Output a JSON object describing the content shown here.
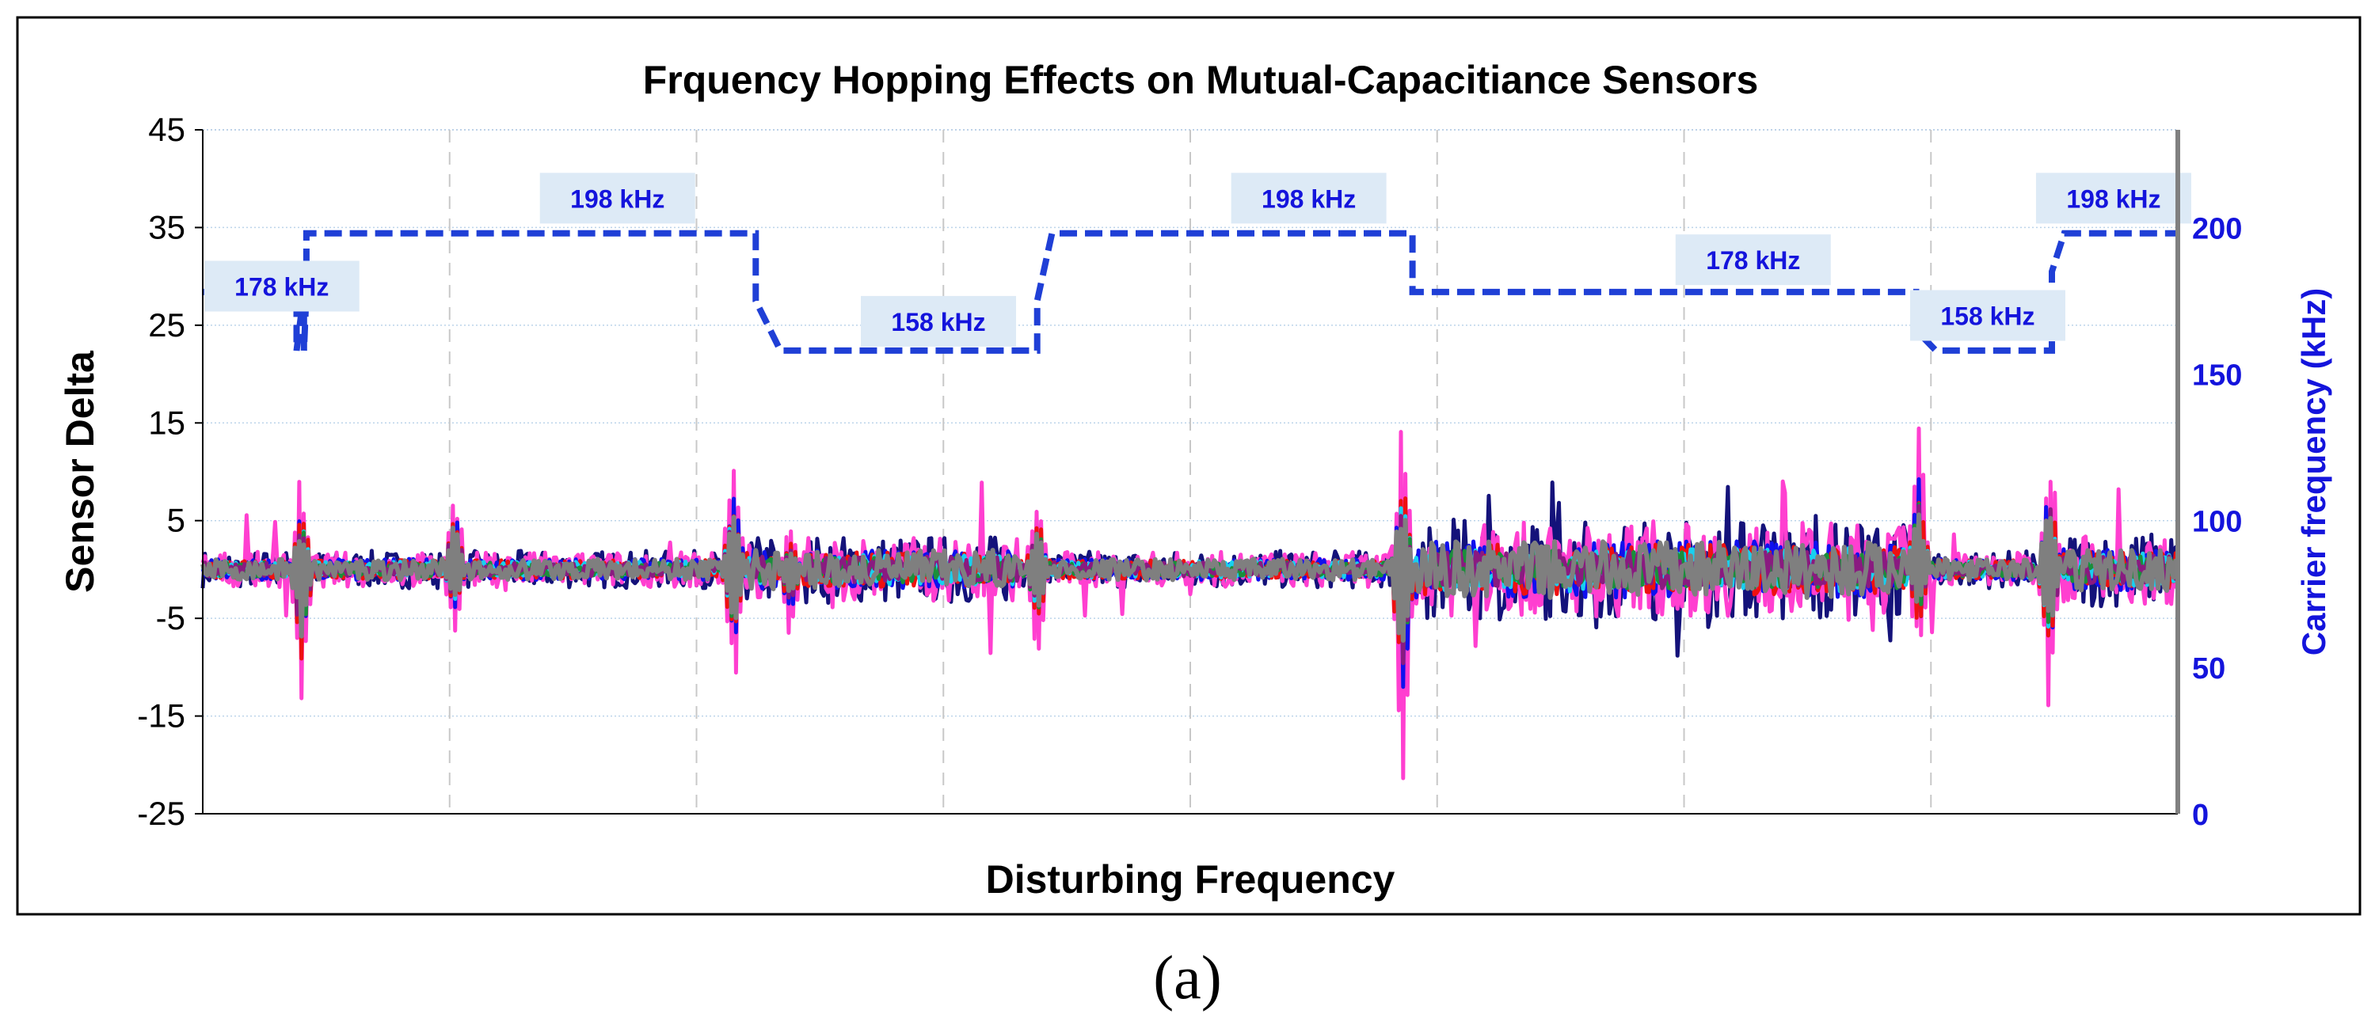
{
  "chart_data": {
    "type": "line",
    "title": "Frquency Hopping Effects on Mutual-Capacitiance Sensors",
    "xlabel": "Disturbing Frequency",
    "ylabel": "Sensor Delta",
    "y2label": "Carrier frequency (kHz)",
    "ylim": [
      -25,
      45
    ],
    "y2lim": [
      0,
      233.33
    ],
    "yticks": [
      "45",
      "35",
      "25",
      "15",
      "5",
      "-5",
      "-15",
      "-25"
    ],
    "y2ticks": [
      "200",
      "150",
      "100",
      "50",
      "0"
    ],
    "xlim": [
      0,
      8
    ],
    "grid": true,
    "carrier_frequency": {
      "color": "#1f3fd6",
      "style": "dashed",
      "x": [
        0,
        0.38,
        0.38,
        0.41,
        0.41,
        0.42,
        0.42,
        2.24,
        2.24,
        2.34,
        2.34,
        3.38,
        3.38,
        3.44,
        3.44,
        4.9,
        4.9,
        4.94,
        4.94,
        6.94,
        6.94,
        7.02,
        7.02,
        7.49,
        7.49,
        7.54,
        7.54,
        8.0
      ],
      "y": [
        178,
        178,
        158,
        178,
        158,
        178,
        198,
        198,
        175,
        158,
        158,
        158,
        175,
        198,
        198,
        198,
        178,
        178,
        178,
        178,
        165,
        158,
        158,
        158,
        185,
        198,
        198,
        198
      ]
    },
    "frequency_labels": [
      {
        "text": "178  kHz",
        "x": 0.32,
        "y": 180
      },
      {
        "text": "198  kHz",
        "x": 1.68,
        "y": 210
      },
      {
        "text": "158  kHz",
        "x": 2.98,
        "y": 168
      },
      {
        "text": "198  kHz",
        "x": 4.48,
        "y": 210
      },
      {
        "text": "178  kHz",
        "x": 6.28,
        "y": 189
      },
      {
        "text": "158  kHz",
        "x": 7.23,
        "y": 170
      },
      {
        "text": "198  kHz",
        "x": 7.74,
        "y": 210
      }
    ],
    "disturbance_events": [
      {
        "x": 0.4,
        "max": 11,
        "min": -16
      },
      {
        "x": 1.02,
        "max": 11,
        "min": -8
      },
      {
        "x": 2.15,
        "max": 14,
        "min": -14
      },
      {
        "x": 2.38,
        "max": 5,
        "min": -8
      },
      {
        "x": 3.38,
        "max": 10,
        "min": -11
      },
      {
        "x": 4.86,
        "max": 17,
        "min": -23
      },
      {
        "x": 6.95,
        "max": 16,
        "min": -10
      },
      {
        "x": 7.48,
        "max": 16,
        "min": -16
      }
    ],
    "series": [
      {
        "color": "#14127a"
      },
      {
        "color": "#ff3fd0"
      },
      {
        "color": "#1010ee"
      },
      {
        "color": "#ee1010"
      },
      {
        "color": "#18d0f0"
      },
      {
        "color": "#1a8f3a"
      },
      {
        "color": "#8a1a80"
      },
      {
        "color": "#7f7f7f"
      }
    ]
  },
  "caption": "(a)"
}
